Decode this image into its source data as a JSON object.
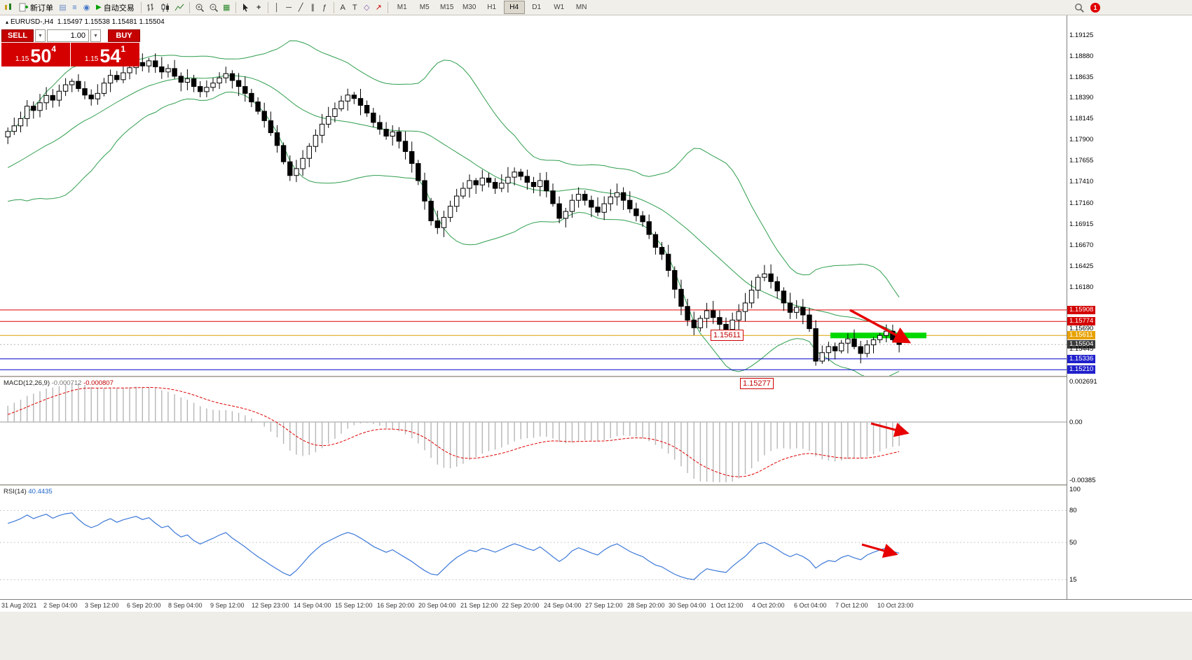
{
  "toolbar": {
    "new_order": "新订单",
    "auto_trading": "自动交易",
    "timeframes": [
      "M1",
      "M5",
      "M15",
      "M30",
      "H1",
      "H4",
      "D1",
      "W1",
      "MN"
    ],
    "active_timeframe": "H4",
    "badge_count": "1"
  },
  "chart_header": {
    "symbol": "EURUSD-,H4",
    "open": "1.15497",
    "high": "1.15538",
    "low": "1.15481",
    "close": "1.15504"
  },
  "trade_panel": {
    "sell": "SELL",
    "buy": "BUY",
    "volume": "1.00",
    "sell_small": "1.15",
    "sell_big": "50",
    "sell_sup": "4",
    "buy_small": "1.15",
    "buy_big": "54",
    "buy_sup": "1"
  },
  "price_axis": {
    "gridline_labels": [
      "1.19125",
      "1.18880",
      "1.18635",
      "1.18390",
      "1.18145",
      "1.17900",
      "1.17655",
      "1.17410",
      "1.17160",
      "1.16915",
      "1.16670",
      "1.16425",
      "1.16180"
    ],
    "marker_labels": [
      {
        "text": "1.15908",
        "price": 1.15908,
        "bg": "#d40000",
        "fg": "#ffffff"
      },
      {
        "text": "1.15774",
        "price": 1.15774,
        "bg": "#d40000",
        "fg": "#ffffff"
      },
      {
        "text": "1.15690",
        "price": 1.1569,
        "bg": "",
        "fg": "#000000"
      },
      {
        "text": "1.15611",
        "price": 1.15611,
        "bg": "#e8a200",
        "fg": "#ffffff"
      },
      {
        "text": "1.15504",
        "price": 1.15504,
        "bg": "#3a3a3a",
        "fg": "#ffffff"
      },
      {
        "text": "1.15445",
        "price": 1.15445,
        "bg": "",
        "fg": "#000000"
      },
      {
        "text": "1.15336",
        "price": 1.15336,
        "bg": "#2020cc",
        "fg": "#ffffff"
      },
      {
        "text": "1.15210",
        "price": 1.1521,
        "bg": "#2020cc",
        "fg": "#ffffff"
      }
    ]
  },
  "macd_panel": {
    "name": "MACD(12,26,9)",
    "value1": "-0.000712",
    "value2": "-0.000807",
    "axis_labels": [
      {
        "text": "0.002691",
        "value": 0.002691
      },
      {
        "text": "0.00",
        "value": 0
      },
      {
        "text": "-0.00385",
        "value": -0.00385
      }
    ]
  },
  "rsi_panel": {
    "name": "RSI(14)",
    "value": "40.4435",
    "axis_labels": [
      {
        "text": "100",
        "value": 100
      },
      {
        "text": "80",
        "value": 80
      },
      {
        "text": "50",
        "value": 50
      },
      {
        "text": "15",
        "value": 15
      }
    ],
    "levels": [
      80,
      50,
      15
    ]
  },
  "time_axis": [
    "31 Aug 2021",
    "2 Sep 04:00",
    "3 Sep 12:00",
    "6 Sep 20:00",
    "8 Sep 04:00",
    "9 Sep 12:00",
    "12 Sep 23:00",
    "14 Sep 04:00",
    "15 Sep 12:00",
    "16 Sep 20:00",
    "20 Sep 04:00",
    "21 Sep 12:00",
    "22 Sep 20:00",
    "24 Sep 04:00",
    "27 Sep 12:00",
    "28 Sep 20:00",
    "30 Sep 04:00",
    "1 Oct 12:00",
    "4 Oct 20:00",
    "6 Oct 04:00",
    "7 Oct 12:00",
    "10 Oct 23:00"
  ],
  "chart_data": {
    "type": "candlestick",
    "symbol": "EURUSD",
    "timeframe": "H4",
    "title": "EURUSD-,H4",
    "ylim": [
      1.1513,
      1.1922
    ],
    "closes": [
      1.17995,
      1.1806,
      1.18145,
      1.1829,
      1.1824,
      1.1833,
      1.18415,
      1.1836,
      1.18465,
      1.1854,
      1.1858,
      1.18495,
      1.1842,
      1.18375,
      1.1844,
      1.1856,
      1.1865,
      1.186,
      1.1868,
      1.1874,
      1.188,
      1.1876,
      1.1882,
      1.1875,
      1.1869,
      1.1873,
      1.1864,
      1.1857,
      1.1861,
      1.1852,
      1.1846,
      1.1851,
      1.1856,
      1.1862,
      1.1867,
      1.1859,
      1.1852,
      1.1844,
      1.1834,
      1.1823,
      1.1812,
      1.1798,
      1.1783,
      1.1764,
      1.1748,
      1.1756,
      1.1768,
      1.1782,
      1.1795,
      1.1808,
      1.1817,
      1.1826,
      1.1835,
      1.1842,
      1.1838,
      1.183,
      1.1821,
      1.181,
      1.1802,
      1.1794,
      1.1799,
      1.1788,
      1.1776,
      1.1762,
      1.1742,
      1.1718,
      1.1695,
      1.1687,
      1.1699,
      1.1712,
      1.1724,
      1.1733,
      1.1742,
      1.1737,
      1.1745,
      1.174,
      1.1733,
      1.1739,
      1.1746,
      1.1752,
      1.1747,
      1.174,
      1.1735,
      1.1742,
      1.173,
      1.1715,
      1.1698,
      1.1706,
      1.1719,
      1.1726,
      1.1719,
      1.1711,
      1.1705,
      1.1715,
      1.1723,
      1.1728,
      1.1719,
      1.1709,
      1.1701,
      1.1694,
      1.1679,
      1.1664,
      1.1656,
      1.1637,
      1.1615,
      1.1595,
      1.1579,
      1.157,
      1.1581,
      1.159,
      1.1582,
      1.1574,
      1.1568,
      1.1579,
      1.1589,
      1.1599,
      1.1614,
      1.1629,
      1.1633,
      1.1624,
      1.1613,
      1.1599,
      1.1588,
      1.1594,
      1.1585,
      1.1569,
      1.1531,
      1.1541,
      1.1548,
      1.1543,
      1.1552,
      1.1557,
      1.1548,
      1.154,
      1.155,
      1.1556,
      1.1561,
      1.1566,
      1.1556,
      1.15504
    ],
    "levels": [
      {
        "price": 1.15908,
        "color": "#e00000"
      },
      {
        "price": 1.15774,
        "color": "#e00000"
      },
      {
        "price": 1.15611,
        "color": "#d8a000"
      },
      {
        "price": 1.15336,
        "color": "#0000cc"
      },
      {
        "price": 1.1521,
        "color": "#0000cc"
      }
    ],
    "price_tags": [
      {
        "text": "1.15611",
        "price": 1.15611
      },
      {
        "text": "1.15277",
        "price": 1.15277
      }
    ],
    "highlight_zone": {
      "price": 1.1561,
      "color": "#00d800"
    },
    "indicators": {
      "bollinger_period": 20,
      "bollinger_deviation": 2,
      "macd": {
        "fast": 12,
        "slow": 26,
        "signal": 9,
        "value": -0.000712,
        "signal_value": -0.000807,
        "axis_max": 0.002691,
        "axis_min": -0.00385
      },
      "rsi": {
        "period": 14,
        "value": 40.4435
      }
    }
  }
}
